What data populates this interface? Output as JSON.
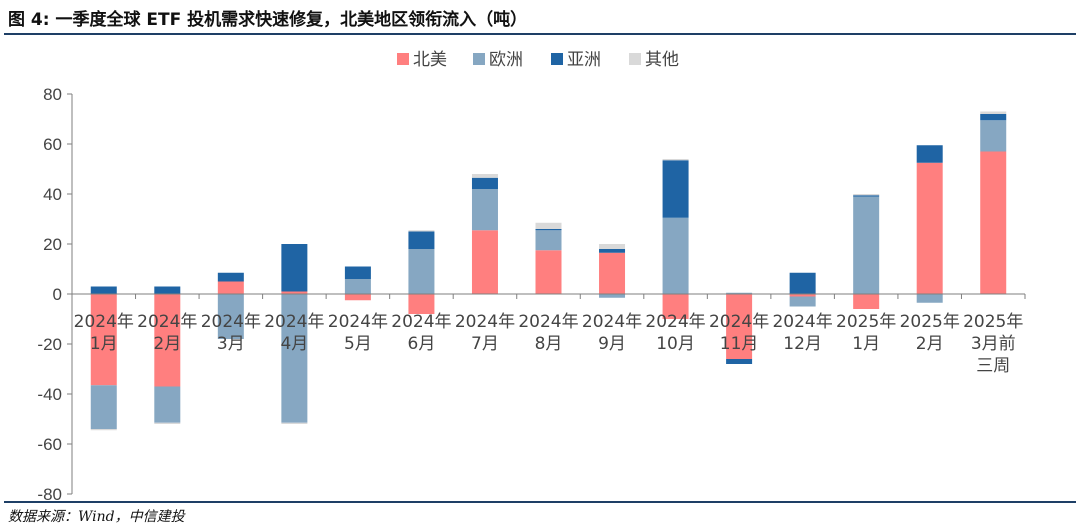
{
  "header": {
    "title": "图 4:  一季度全球 ETF 投机需求快速修复，北美地区领衔流入（吨）"
  },
  "footer": {
    "source": "数据来源：Wind，中信建投"
  },
  "chart_data": {
    "type": "bar",
    "stacked": true,
    "title": "一季度全球 ETF 投机需求快速修复，北美地区领衔流入（吨）",
    "xlabel": "",
    "ylabel": "",
    "ylim": [
      -80,
      80
    ],
    "yticks": [
      80,
      60,
      40,
      20,
      0,
      -20,
      -40,
      -60,
      -80
    ],
    "legend_position": "top-center",
    "grid": false,
    "categories": [
      [
        "2024年",
        "1月"
      ],
      [
        "2024年",
        "2月"
      ],
      [
        "2024年",
        "3月"
      ],
      [
        "2024年",
        "4月"
      ],
      [
        "2024年",
        "5月"
      ],
      [
        "2024年",
        "6月"
      ],
      [
        "2024年",
        "7月"
      ],
      [
        "2024年",
        "8月"
      ],
      [
        "2024年",
        "9月"
      ],
      [
        "2024年",
        "10月"
      ],
      [
        "2024年",
        "11月"
      ],
      [
        "2024年",
        "12月"
      ],
      [
        "2025年",
        "1月"
      ],
      [
        "2025年",
        "2月"
      ],
      [
        "2025年",
        "3月前",
        "三周"
      ]
    ],
    "series": [
      {
        "name": "北美",
        "color": "#ff7f7f",
        "values": [
          -36.5,
          -37.0,
          5.0,
          1.0,
          -2.5,
          -8.0,
          25.5,
          17.5,
          16.5,
          -10.0,
          -26.0,
          -1.0,
          -6.0,
          52.5,
          57.0
        ]
      },
      {
        "name": "欧洲",
        "color": "#86a7c2",
        "values": [
          -17.5,
          -14.5,
          -18.0,
          -51.5,
          6.0,
          18.0,
          16.5,
          8.0,
          -1.5,
          30.5,
          0.5,
          -4.0,
          39.0,
          -3.5,
          12.5
        ]
      },
      {
        "name": "亚洲",
        "color": "#1f64a4",
        "values": [
          3.0,
          3.0,
          3.5,
          19.0,
          5.0,
          7.0,
          4.5,
          0.5,
          1.5,
          23.0,
          -2.0,
          8.5,
          0.5,
          7.0,
          2.5
        ]
      },
      {
        "name": "其他",
        "color": "#d9d9d9",
        "values": [
          -0.5,
          -0.5,
          0.0,
          -0.5,
          0.0,
          0.5,
          1.5,
          2.5,
          2.0,
          0.5,
          0.0,
          0.0,
          0.5,
          0.0,
          1.0
        ]
      }
    ]
  }
}
